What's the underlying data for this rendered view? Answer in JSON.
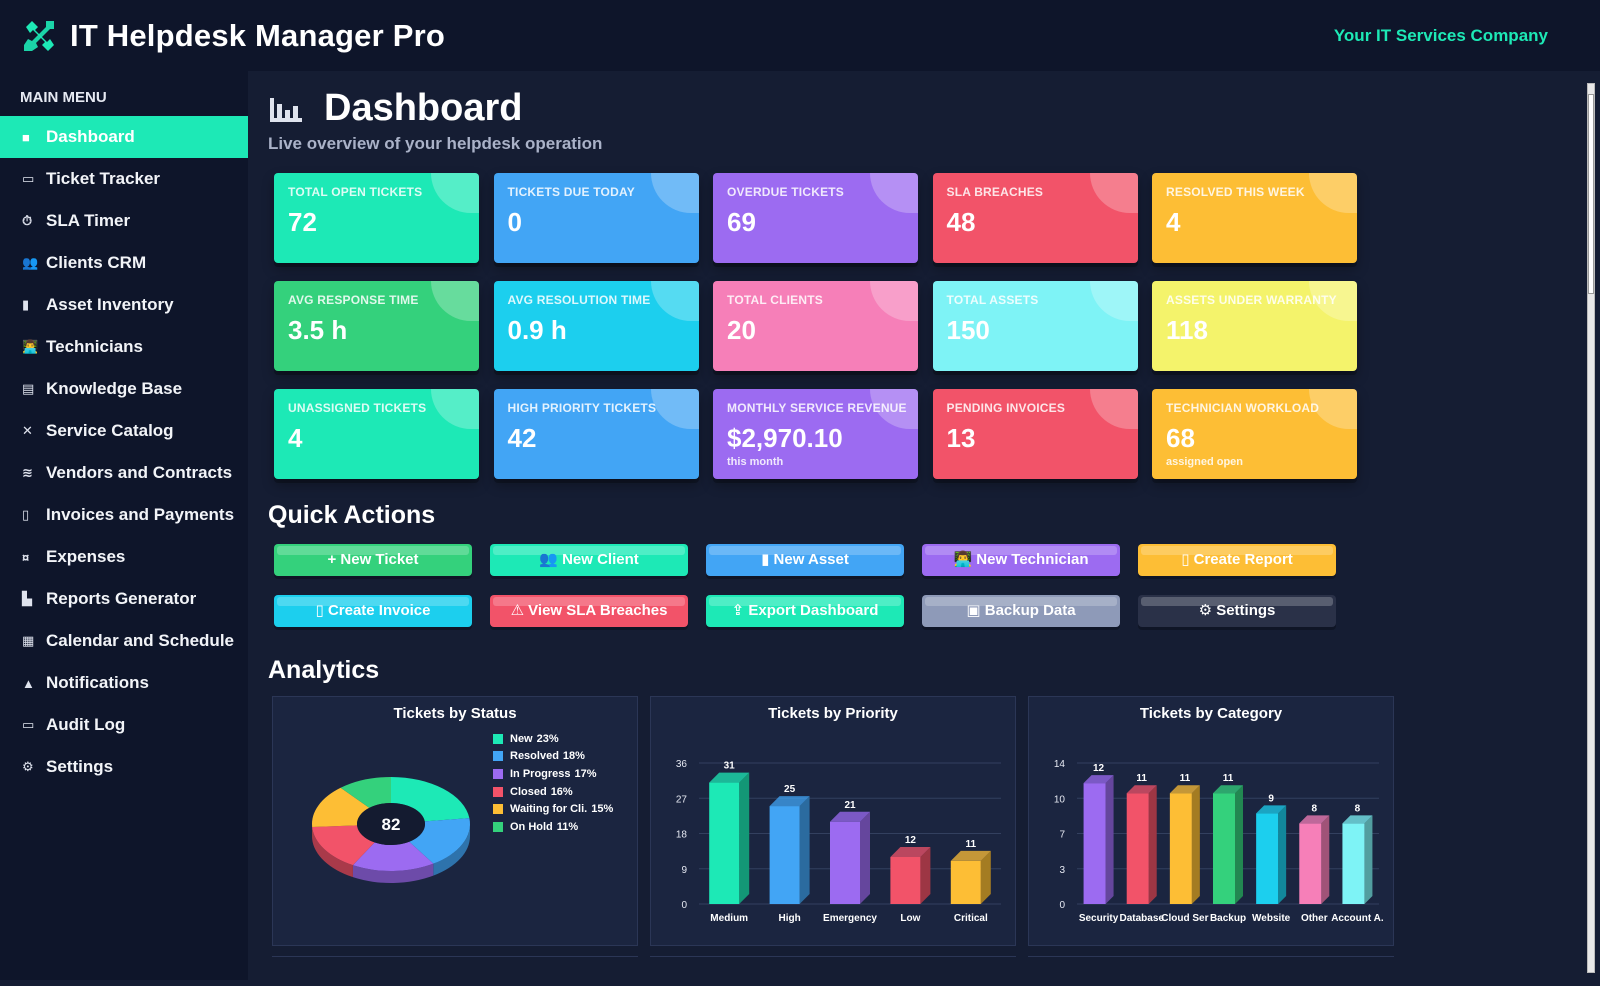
{
  "app": {
    "title": "IT Helpdesk Manager Pro",
    "company": "Your IT Services Company",
    "logo_icon": "tools-icon"
  },
  "sidebar": {
    "heading": "MAIN MENU",
    "items": [
      {
        "label": "Dashboard",
        "icon": "home-icon",
        "glyph": "■",
        "active": true
      },
      {
        "label": "Ticket Tracker",
        "icon": "ticket-icon",
        "glyph": "▭"
      },
      {
        "label": "SLA Timer",
        "icon": "timer-icon",
        "glyph": "⏱"
      },
      {
        "label": "Clients CRM",
        "icon": "users-icon",
        "glyph": "👥"
      },
      {
        "label": "Asset Inventory",
        "icon": "desktop-icon",
        "glyph": "▮"
      },
      {
        "label": "Technicians",
        "icon": "technician-icon",
        "glyph": "👨‍💻"
      },
      {
        "label": "Knowledge Base",
        "icon": "book-icon",
        "glyph": "▤"
      },
      {
        "label": "Service Catalog",
        "icon": "tools-icon",
        "glyph": "✕"
      },
      {
        "label": "Vendors and Contracts",
        "icon": "handshake-icon",
        "glyph": "≋"
      },
      {
        "label": "Invoices and Payments",
        "icon": "invoice-icon",
        "glyph": "▯"
      },
      {
        "label": "Expenses",
        "icon": "money-icon",
        "glyph": "¤"
      },
      {
        "label": "Reports Generator",
        "icon": "bar-chart-icon",
        "glyph": "▙"
      },
      {
        "label": "Calendar and Schedule",
        "icon": "calendar-icon",
        "glyph": "▦"
      },
      {
        "label": "Notifications",
        "icon": "bell-icon",
        "glyph": "▲"
      },
      {
        "label": "Audit Log",
        "icon": "log-icon",
        "glyph": "▭"
      },
      {
        "label": "Settings",
        "icon": "gear-icon",
        "glyph": "⚙"
      }
    ]
  },
  "page": {
    "title": "Dashboard",
    "subtitle": "Live overview of your helpdesk operation",
    "title_icon": "bar-chart-icon"
  },
  "stats": [
    {
      "label": "TOTAL OPEN TICKETS",
      "value": "72",
      "color": "#1de9b6"
    },
    {
      "label": "TICKETS DUE TODAY",
      "value": "0",
      "color": "#42a5f5"
    },
    {
      "label": "OVERDUE TICKETS",
      "value": "69",
      "color": "#9c6bf1"
    },
    {
      "label": "SLA BREACHES",
      "value": "48",
      "color": "#f25369"
    },
    {
      "label": "RESOLVED THIS WEEK",
      "value": "4",
      "color": "#fdbe35"
    },
    {
      "label": "AVG RESPONSE TIME",
      "value": "3.5 h",
      "color": "#34d17c"
    },
    {
      "label": "AVG RESOLUTION TIME",
      "value": "0.9 h",
      "color": "#1ccfee"
    },
    {
      "label": "TOTAL CLIENTS",
      "value": "20",
      "color": "#f67fb8"
    },
    {
      "label": "TOTAL ASSETS",
      "value": "150",
      "color": "#7ef3f6"
    },
    {
      "label": "ASSETS UNDER WARRANTY",
      "value": "118",
      "color": "#f4f36b"
    },
    {
      "label": "UNASSIGNED TICKETS",
      "value": "4",
      "color": "#1de9b6"
    },
    {
      "label": "HIGH PRIORITY TICKETS",
      "value": "42",
      "color": "#42a5f5"
    },
    {
      "label": "MONTHLY SERVICE REVENUE",
      "value": "$2,970.10",
      "note": "this month",
      "color": "#9c6bf1"
    },
    {
      "label": "PENDING INVOICES",
      "value": "13",
      "color": "#f25369"
    },
    {
      "label": "TECHNICIAN WORKLOAD",
      "value": "68",
      "note": "assigned open",
      "color": "#fdbe35"
    }
  ],
  "quick_actions": {
    "title": "Quick Actions",
    "buttons": [
      {
        "label": "+ New Ticket",
        "color": "#34d17c"
      },
      {
        "label": "👥 New Client",
        "color": "#1de9b6"
      },
      {
        "label": "▮ New Asset",
        "color": "#42a5f5"
      },
      {
        "label": "👨‍💻 New Technician",
        "color": "#9c6bf1"
      },
      {
        "label": "▯ Create Report",
        "color": "#fdbe35"
      },
      {
        "label": "▯ Create Invoice",
        "color": "#1ccfee"
      },
      {
        "label": "⚠ View SLA Breaches",
        "color": "#f25369"
      },
      {
        "label": "⇪ Export Dashboard",
        "color": "#1de9b6"
      },
      {
        "label": "▣ Backup Data",
        "color": "#8e9ab8"
      },
      {
        "label": "⚙ Settings",
        "color": "#2a3148"
      }
    ]
  },
  "analytics": {
    "title": "Analytics"
  },
  "chart_data": [
    {
      "type": "pie",
      "title": "Tickets by Status",
      "center_label": "82",
      "slices": [
        {
          "name": "New",
          "percent": "23%",
          "value": 23,
          "color": "#1de9b6"
        },
        {
          "name": "Resolved",
          "percent": "18%",
          "value": 18,
          "color": "#42a5f5"
        },
        {
          "name": "In Progress",
          "percent": "17%",
          "value": 17,
          "color": "#9c6bf1"
        },
        {
          "name": "Closed",
          "percent": "16%",
          "value": 16,
          "color": "#f25369"
        },
        {
          "name": "Waiting for Cli.",
          "percent": "15%",
          "value": 15,
          "color": "#fdbe35"
        },
        {
          "name": "On Hold",
          "percent": "11%",
          "value": 11,
          "color": "#34d17c"
        }
      ]
    },
    {
      "type": "bar",
      "title": "Tickets by Priority",
      "categories": [
        "Medium",
        "High",
        "Emergency",
        "Low",
        "Critical"
      ],
      "values": [
        31,
        25,
        21,
        12,
        11
      ],
      "colors": [
        "#1de9b6",
        "#42a5f5",
        "#9c6bf1",
        "#f25369",
        "#fdbe35"
      ],
      "yticks": [
        "0",
        "9",
        "18",
        "27",
        "36"
      ],
      "ylim": [
        0,
        36
      ]
    },
    {
      "type": "bar",
      "title": "Tickets by Category",
      "categories": [
        "Security",
        "Database",
        "Cloud Ser",
        "Backup",
        "Website",
        "Other",
        "Account A."
      ],
      "values": [
        12,
        11,
        11,
        11,
        9,
        8,
        8
      ],
      "colors": [
        "#9c6bf1",
        "#f25369",
        "#fdbe35",
        "#34d17c",
        "#1ccfee",
        "#f67fb8",
        "#7ef3f6"
      ],
      "yticks": [
        "0",
        "3",
        "7",
        "10",
        "14"
      ],
      "ylim": [
        0,
        14
      ]
    }
  ]
}
